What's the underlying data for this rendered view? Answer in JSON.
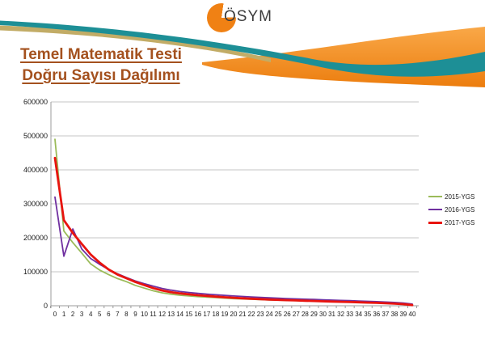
{
  "header": {
    "logo_text": "ÖSYM",
    "title_line1": "Temel Matematik Testi",
    "title_line2": "Doğru Sayısı Dağılımı",
    "title_color": "#A4511E"
  },
  "decor": {
    "swoosh_teal": "#1D8F96",
    "swoosh_tan": "#C2AC66",
    "swoosh_orange_light": "#F9A848",
    "swoosh_orange_dark": "#EC7D0E",
    "logo_orange": "#F08114"
  },
  "chart_data": {
    "type": "line",
    "title": "",
    "xlabel": "",
    "ylabel": "",
    "x": [
      0,
      1,
      2,
      3,
      4,
      5,
      6,
      7,
      8,
      9,
      10,
      11,
      12,
      13,
      14,
      15,
      16,
      17,
      18,
      19,
      20,
      21,
      22,
      23,
      24,
      25,
      26,
      27,
      28,
      29,
      30,
      31,
      32,
      33,
      34,
      35,
      36,
      37,
      38,
      39,
      40
    ],
    "ylim": [
      0,
      600000
    ],
    "y_ticks": [
      0,
      100000,
      200000,
      300000,
      400000,
      500000,
      600000
    ],
    "grid": true,
    "legend_position": "right",
    "gridline_color": "#C6C6C6",
    "axis_color": "#9B9B9B",
    "tick_label_color": "#1a1a1a",
    "series": [
      {
        "name": "2015-YGS",
        "color": "#9BBB59",
        "line_width": 1.8,
        "values": [
          490000,
          220000,
          186000,
          155000,
          123000,
          105000,
          92000,
          80000,
          71000,
          60000,
          52000,
          44000,
          38000,
          34000,
          31000,
          29000,
          27000,
          25500,
          24000,
          22500,
          21000,
          20000,
          19000,
          18000,
          17200,
          16500,
          15700,
          15000,
          14300,
          13600,
          13000,
          12300,
          11600,
          11000,
          10300,
          9600,
          8800,
          7900,
          6800,
          5500,
          2500
        ]
      },
      {
        "name": "2016-YGS",
        "color": "#7030A0",
        "line_width": 1.8,
        "values": [
          320000,
          146000,
          226000,
          167000,
          139000,
          122000,
          107000,
          94000,
          83000,
          73000,
          65000,
          57500,
          51000,
          46000,
          42000,
          39000,
          36500,
          34300,
          32300,
          30500,
          28800,
          27300,
          25900,
          24600,
          23400,
          22300,
          21300,
          20300,
          19400,
          18500,
          17600,
          16700,
          15800,
          14900,
          14000,
          13100,
          12100,
          11000,
          9700,
          8000,
          5000
        ]
      },
      {
        "name": "2017-YGS",
        "color": "#E8140F",
        "line_width": 2.8,
        "values": [
          435000,
          252000,
          214000,
          182000,
          151000,
          127000,
          107000,
          92000,
          81000,
          70000,
          61000,
          52000,
          45000,
          40000,
          36500,
          33500,
          31000,
          29000,
          27000,
          25000,
          23500,
          22000,
          20700,
          19500,
          18400,
          17400,
          16500,
          15600,
          14800,
          14000,
          13200,
          12400,
          11700,
          11000,
          10200,
          9400,
          8500,
          7500,
          6300,
          4800,
          2000
        ]
      }
    ]
  }
}
